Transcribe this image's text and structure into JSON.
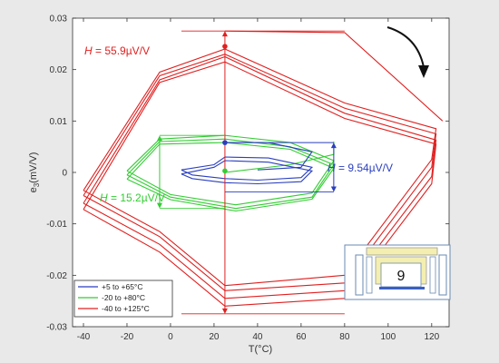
{
  "chart_data": {
    "type": "line",
    "title": "",
    "xlabel": "T(°C)",
    "ylabel_main": "e",
    "ylabel_sub": "3",
    "ylabel_unit": "(mV/V)",
    "xlim": [
      -45,
      128
    ],
    "ylim": [
      -0.03,
      0.03
    ],
    "xticks": [
      -40,
      -20,
      0,
      20,
      40,
      60,
      80,
      100,
      120
    ],
    "yticks": [
      -0.03,
      -0.02,
      -0.01,
      0,
      0.01,
      0.02,
      0.03
    ],
    "ytick_labels": [
      "-0.03",
      "-0.02",
      "-0.01",
      "0",
      "0.01",
      "0.02",
      "0.03"
    ],
    "grid": false,
    "legend_position": "bottom-left",
    "series": [
      {
        "name": "+5 to +65°C",
        "color": "#2a3fbf",
        "loops": [
          [
            [
              5,
              0.0005
            ],
            [
              20,
              0.0015
            ],
            [
              25,
              0.003
            ],
            [
              45,
              0.0028
            ],
            [
              65,
              0.001
            ],
            [
              60,
              -0.001
            ],
            [
              40,
              -0.0015
            ],
            [
              25,
              -0.0012
            ],
            [
              10,
              -0.0005
            ],
            [
              5,
              0.0005
            ]
          ],
          [
            [
              5,
              -0.0003
            ],
            [
              20,
              0.001
            ],
            [
              25,
              0.0023
            ],
            [
              45,
              0.002
            ],
            [
              65,
              0.0003
            ],
            [
              60,
              -0.0018
            ],
            [
              40,
              -0.0022
            ],
            [
              25,
              -0.002
            ],
            [
              10,
              -0.0012
            ],
            [
              5,
              -0.0003
            ]
          ]
        ],
        "open_path": [
          [
            25,
            0.0058
          ],
          [
            45,
            0.0058
          ],
          [
            65,
            0.004
          ],
          [
            60,
            0.001
          ],
          [
            40,
            0.0005
          ]
        ]
      },
      {
        "name": "-20 to +80°C",
        "color": "#33cc33",
        "loops": [
          [
            [
              -20,
              0.0003
            ],
            [
              -5,
              0.0065
            ],
            [
              25,
              0.0072
            ],
            [
              55,
              0.0058
            ],
            [
              75,
              0.0023
            ],
            [
              65,
              -0.004
            ],
            [
              30,
              -0.0063
            ],
            [
              0,
              -0.0043
            ],
            [
              -20,
              0.0003
            ]
          ],
          [
            [
              -20,
              -0.0005
            ],
            [
              -5,
              0.006
            ],
            [
              25,
              0.0065
            ],
            [
              55,
              0.005
            ],
            [
              75,
              0.0015
            ],
            [
              65,
              -0.0048
            ],
            [
              30,
              -0.007
            ],
            [
              0,
              -0.0048
            ],
            [
              -20,
              -0.0005
            ]
          ],
          [
            [
              -20,
              -0.0013
            ],
            [
              -5,
              0.0055
            ],
            [
              25,
              0.0058
            ],
            [
              55,
              0.0045
            ],
            [
              75,
              0.0008
            ],
            [
              65,
              -0.0052
            ],
            [
              30,
              -0.0075
            ],
            [
              0,
              -0.0053
            ],
            [
              -20,
              -0.0013
            ]
          ]
        ],
        "open_path": [
          [
            25,
            0.0
          ],
          [
            55,
            0.0015
          ],
          [
            75,
            0.0035
          ],
          [
            75,
            0.006
          ]
        ]
      },
      {
        "name": "-40 to +125°C",
        "color": "#e02020",
        "loops": [
          [
            [
              -40,
              -0.0035
            ],
            [
              -5,
              0.0195
            ],
            [
              25,
              0.024
            ],
            [
              80,
              0.0135
            ],
            [
              122,
              0.0085
            ],
            [
              120,
              0.0025
            ],
            [
              80,
              -0.02
            ],
            [
              25,
              -0.022
            ],
            [
              -5,
              -0.0115
            ],
            [
              -40,
              -0.0035
            ]
          ],
          [
            [
              -40,
              -0.0045
            ],
            [
              -5,
              0.0188
            ],
            [
              25,
              0.023
            ],
            [
              80,
              0.0125
            ],
            [
              122,
              0.0075
            ],
            [
              120,
              0.001
            ],
            [
              80,
              -0.0215
            ],
            [
              25,
              -0.023
            ],
            [
              -5,
              -0.0125
            ],
            [
              -40,
              -0.0045
            ]
          ],
          [
            [
              -40,
              -0.006
            ],
            [
              -5,
              0.018
            ],
            [
              25,
              0.0225
            ],
            [
              80,
              0.0115
            ],
            [
              122,
              0.0063
            ],
            [
              120,
              -0.0008
            ],
            [
              80,
              -0.023
            ],
            [
              25,
              -0.0245
            ],
            [
              -5,
              -0.014
            ],
            [
              -40,
              -0.006
            ]
          ],
          [
            [
              -40,
              -0.0072
            ],
            [
              -5,
              0.0175
            ],
            [
              25,
              0.0215
            ],
            [
              80,
              0.0105
            ],
            [
              122,
              0.0055
            ],
            [
              120,
              -0.0022
            ],
            [
              80,
              -0.0245
            ],
            [
              25,
              -0.026
            ],
            [
              -5,
              -0.0155
            ],
            [
              -40,
              -0.0072
            ]
          ]
        ],
        "open_path": [
          [
            25,
            0.0275
          ],
          [
            80,
            0.0272
          ],
          [
            125,
            0.01
          ]
        ]
      }
    ],
    "annotations": {
      "red_label": "H = 55.9µV/V",
      "green_label": "H = 15.2µV/V",
      "blue_label": "H = 9.54µV/V",
      "red_ref": {
        "x": 25,
        "y_top": 0.0275,
        "y_bottom": -0.0275,
        "marker": [
          25,
          0.0245
        ],
        "line_from": 5,
        "line_to": 80
      },
      "green_ref": {
        "x": -5,
        "y_top": 0.0072,
        "y_bottom": -0.007,
        "marker": [
          25,
          0.0003
        ],
        "line_from": -5,
        "line_to": 25
      },
      "blue_ref": {
        "x": 75,
        "y_top": 0.0058,
        "y_bottom": -0.0038,
        "marker": [
          25,
          0.0058
        ],
        "line_from": 25,
        "line_to": 75
      }
    },
    "inset_label": "9"
  }
}
